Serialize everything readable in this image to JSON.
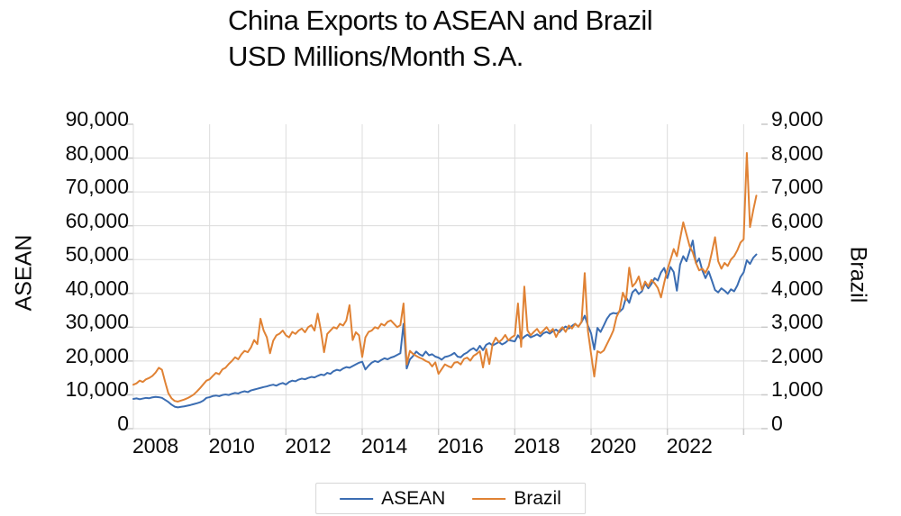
{
  "title": {
    "line1": "China Exports to ASEAN and Brazil",
    "line2": "USD Millions/Month S.A."
  },
  "axes": {
    "left_label": "ASEAN",
    "right_label": "Brazil",
    "left_ticks": [
      "0",
      "10,000",
      "20,000",
      "30,000",
      "40,000",
      "50,000",
      "60,000",
      "70,000",
      "80,000",
      "90,000"
    ],
    "right_ticks": [
      "0",
      "1,000",
      "2,000",
      "3,000",
      "4,000",
      "5,000",
      "6,000",
      "7,000",
      "8,000",
      "9,000"
    ],
    "x_ticks": [
      "2008",
      "2010",
      "2012",
      "2014",
      "2016",
      "2018",
      "2020",
      "2022"
    ]
  },
  "legend": [
    {
      "label": "ASEAN",
      "color": "#3b6db2"
    },
    {
      "label": "Brazil",
      "color": "#e08234"
    }
  ],
  "colors": {
    "gridline": "#dcdcdc",
    "tickmark": "#c9c9c9",
    "asean_line": "#3b6db2",
    "brazil_line": "#e08234"
  },
  "chart_data": {
    "type": "line",
    "title": "China Exports to ASEAN and Brazil",
    "subtitle": "USD Millions/Month S.A.",
    "frequency": "monthly",
    "x_start": "2008-01",
    "x_end": "2024-05",
    "x_tick_years": [
      2008,
      2010,
      2012,
      2014,
      2016,
      2018,
      2020,
      2022
    ],
    "x_gridline_years": [
      2010,
      2012,
      2014,
      2016,
      2018,
      2020,
      2022,
      2024
    ],
    "left_axis": {
      "label": "ASEAN",
      "range": [
        0,
        90000
      ],
      "tick_step": 10000
    },
    "right_axis": {
      "label": "Brazil",
      "range": [
        0,
        9000
      ],
      "tick_step": 1000
    },
    "grid": true,
    "legend_position": "bottom",
    "series": [
      {
        "name": "ASEAN",
        "axis": "left",
        "color": "#3b6db2",
        "values": [
          8800,
          8950,
          8700,
          8900,
          9100,
          9000,
          9250,
          9400,
          9300,
          9100,
          8500,
          7900,
          7100,
          6500,
          6300,
          6450,
          6600,
          6800,
          7000,
          7250,
          7500,
          7800,
          8300,
          9100,
          9300,
          9650,
          9800,
          9600,
          9950,
          10100,
          9950,
          10300,
          10550,
          10400,
          10800,
          11050,
          10800,
          11300,
          11550,
          11800,
          12050,
          12300,
          12500,
          12800,
          13000,
          12700,
          13200,
          13500,
          13050,
          13800,
          14200,
          14000,
          14500,
          14800,
          14600,
          15000,
          15300,
          15150,
          15600,
          16000,
          15800,
          16500,
          16200,
          17000,
          17400,
          17150,
          17800,
          18200,
          18000,
          18500,
          19000,
          19500,
          19800,
          17500,
          18600,
          19500,
          20000,
          19700,
          20300,
          20800,
          20500,
          21000,
          21300,
          21800,
          22300,
          31000,
          17800,
          20500,
          21500,
          22800,
          22000,
          21500,
          22800,
          21700,
          22000,
          21300,
          21000,
          20400,
          21200,
          21400,
          21800,
          22400,
          21300,
          21100,
          22000,
          22500,
          23300,
          23800,
          23000,
          24500,
          23200,
          24800,
          25300,
          24600,
          25100,
          25600,
          24900,
          25400,
          26200,
          26000,
          25800,
          27600,
          26300,
          27200,
          27800,
          27000,
          27400,
          27900,
          27300,
          28200,
          28600,
          28100,
          28800,
          29300,
          28500,
          29500,
          30200,
          29600,
          30400,
          31000,
          30200,
          31500,
          33400,
          30500,
          28200,
          23400,
          29800,
          28600,
          30500,
          32500,
          33800,
          34200,
          34000,
          34600,
          35500,
          38800,
          37200,
          40300,
          41200,
          39800,
          40600,
          43000,
          41500,
          42800,
          44500,
          43800,
          46200,
          47500,
          44500,
          47800,
          46300,
          40800,
          48500,
          51000,
          49500,
          52500,
          55600,
          48900,
          50300,
          46800,
          44500,
          46500,
          43800,
          41000,
          40300,
          41500,
          40800,
          39900,
          41200,
          40600,
          42300,
          44800,
          46200,
          49800,
          48700,
          50500,
          51500
        ]
      },
      {
        "name": "Brazil",
        "axis": "right",
        "color": "#e08234",
        "values": [
          1300,
          1340,
          1420,
          1380,
          1460,
          1500,
          1560,
          1660,
          1800,
          1740,
          1380,
          1050,
          900,
          820,
          800,
          830,
          860,
          900,
          950,
          1010,
          1100,
          1200,
          1310,
          1420,
          1460,
          1560,
          1650,
          1610,
          1750,
          1800,
          1910,
          2000,
          2110,
          2050,
          2200,
          2300,
          2260,
          2400,
          2620,
          2500,
          3250,
          2900,
          2700,
          2230,
          2600,
          2760,
          2810,
          2900,
          2760,
          2700,
          2860,
          2800,
          2900,
          2960,
          2850,
          3000,
          3060,
          2900,
          3400,
          2900,
          2260,
          2800,
          2900,
          3000,
          2960,
          3100,
          3050,
          3200,
          3650,
          2620,
          2850,
          2760,
          2120,
          2700,
          2860,
          2900,
          3000,
          2960,
          3100,
          3050,
          3160,
          3200,
          3100,
          3000,
          3060,
          3700,
          1900,
          2300,
          2210,
          2150,
          2100,
          2060,
          2000,
          1960,
          1840,
          1960,
          1620,
          1760,
          1900,
          1850,
          1810,
          1950,
          1970,
          1900,
          2060,
          2100,
          2010,
          2150,
          2210,
          2290,
          1810,
          2360,
          1910,
          2500,
          2690,
          2560,
          2640,
          2770,
          2610,
          2700,
          2760,
          3700,
          2420,
          4200,
          2900,
          2760,
          2860,
          2950,
          2810,
          2900,
          3000,
          2860,
          2950,
          2710,
          2900,
          3000,
          2860,
          3050,
          2960,
          3100,
          3010,
          3160,
          4600,
          2900,
          2210,
          1540,
          2290,
          2240,
          2310,
          2500,
          2690,
          2900,
          3300,
          3500,
          4020,
          3800,
          4760,
          4200,
          4310,
          4500,
          4110,
          4350,
          4210,
          4400,
          4300,
          4160,
          3880,
          4310,
          4700,
          5000,
          5310,
          5100,
          5610,
          6100,
          5750,
          5400,
          5210,
          4900,
          4680,
          4730,
          4610,
          4800,
          5210,
          5660,
          4950,
          4730,
          4900,
          4810,
          5000,
          5100,
          5270,
          5500,
          5600,
          8150,
          5960,
          6450,
          6890
        ]
      }
    ]
  }
}
